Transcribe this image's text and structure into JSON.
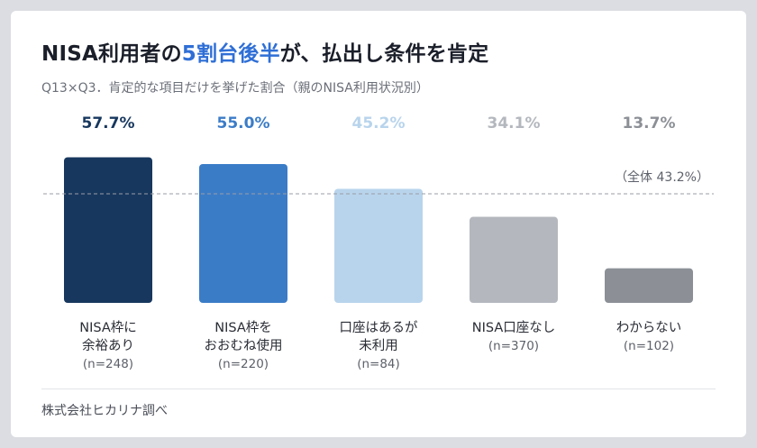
{
  "title": {
    "prefix": "NISA利用者の",
    "highlight": "5割台後半",
    "suffix": "が、払出し条件を肯定"
  },
  "subtitle": "Q13×Q3．肯定的な項目だけを挙げた割合（親のNISA利用状況別）",
  "source": "株式会社ヒカリナ調べ",
  "colors": {
    "title_highlight": "#2f6fd6",
    "reference_line": "#9a9ea6"
  },
  "chart_data": {
    "type": "bar",
    "categories": [
      {
        "lines": [
          "NISA枠に",
          "余裕あり"
        ],
        "n": "(n=248)"
      },
      {
        "lines": [
          "NISA枠を",
          "おおむね使用"
        ],
        "n": "(n=220)"
      },
      {
        "lines": [
          "口座はあるが",
          "未利用"
        ],
        "n": "(n=84)"
      },
      {
        "lines": [
          "NISA口座なし"
        ],
        "n": "(n=370)"
      },
      {
        "lines": [
          "わからない"
        ],
        "n": "(n=102)"
      }
    ],
    "values": [
      57.7,
      55.0,
      45.2,
      34.1,
      13.7
    ],
    "value_labels": [
      "57.7%",
      "55.0%",
      "45.2%",
      "34.1%",
      "13.7%"
    ],
    "bar_colors": [
      "#17375e",
      "#3b7cc7",
      "#b8d4ec",
      "#b4b8be",
      "#8c9096"
    ],
    "label_colors": [
      "#17375e",
      "#3b7cc7",
      "#b8d4ec",
      "#b4b8be",
      "#8c9096"
    ],
    "reference": {
      "value": 43.2,
      "label": "（全体 43.2%）"
    },
    "ylim": [
      0,
      100
    ],
    "unit": "%"
  }
}
